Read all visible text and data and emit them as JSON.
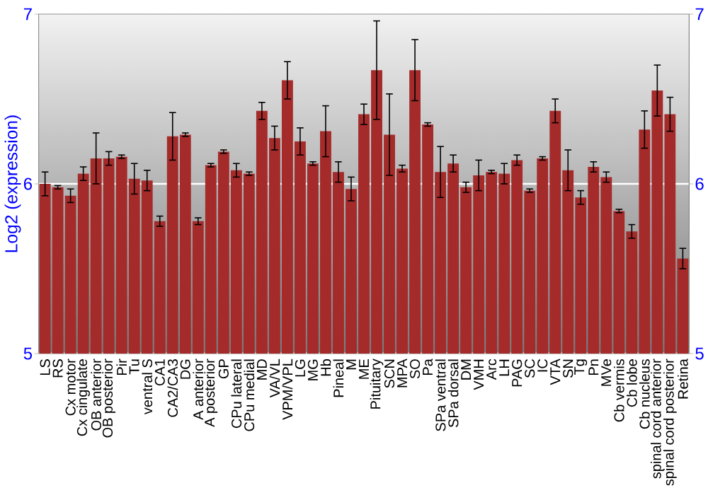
{
  "chart_data": {
    "type": "bar",
    "ylabel": "Log2 (expression)",
    "categories": [
      "LS",
      "RS",
      "Cx motor",
      "Cx cingulate",
      "OB anterior",
      "OB posterior",
      "Pir",
      "Tu",
      "ventral S",
      "CA1",
      "CA2/CA3",
      "DG",
      "A anterior",
      "A posterior",
      "GP",
      "CPu lateral",
      "CPu medial",
      "MD",
      "VA/VL",
      "VPM/VPL",
      "LG",
      "MG",
      "Hb",
      "Pineal",
      "M",
      "ME",
      "Pituitary",
      "SCN",
      "MPA",
      "SO",
      "Pa",
      "SPa ventral",
      "SPa dorsal",
      "DM",
      "VMH",
      "Arc",
      "LH",
      "PAG",
      "SC",
      "IC",
      "VTA",
      "SN",
      "Tg",
      "Pn",
      "MVe",
      "Cb vermis",
      "Cb lobe",
      "Cb nucleus",
      "spinal cord anterior",
      "spinal cord posterior",
      "Retina"
    ],
    "values": [
      6.0,
      5.98,
      5.93,
      6.06,
      6.15,
      6.15,
      6.16,
      6.03,
      6.02,
      5.78,
      6.28,
      6.29,
      5.78,
      6.11,
      6.19,
      6.08,
      6.06,
      6.43,
      6.27,
      6.61,
      6.25,
      6.12,
      6.31,
      6.07,
      5.97,
      6.41,
      6.67,
      6.29,
      6.09,
      6.67,
      6.35,
      6.07,
      6.12,
      5.98,
      6.05,
      6.07,
      6.06,
      6.14,
      5.96,
      6.15,
      6.43,
      6.08,
      5.92,
      6.1,
      6.04,
      5.84,
      5.72,
      6.32,
      6.55,
      6.41,
      5.56
    ],
    "errors": [
      0.07,
      0.01,
      0.04,
      0.04,
      0.15,
      0.04,
      0.01,
      0.09,
      0.06,
      0.03,
      0.14,
      0.01,
      0.02,
      0.01,
      0.01,
      0.04,
      0.01,
      0.05,
      0.07,
      0.11,
      0.08,
      0.01,
      0.15,
      0.06,
      0.07,
      0.06,
      0.29,
      0.24,
      0.02,
      0.18,
      0.01,
      0.15,
      0.05,
      0.03,
      0.09,
      0.01,
      0.06,
      0.03,
      0.01,
      0.01,
      0.07,
      0.12,
      0.04,
      0.03,
      0.03,
      0.01,
      0.04,
      0.11,
      0.15,
      0.1,
      0.06
    ],
    "color": "#a52a2a",
    "ylim": [
      5,
      7
    ],
    "yticks": [
      5,
      6,
      7
    ],
    "y2lim": [
      5,
      7
    ],
    "y2ticks": [
      5,
      6,
      7
    ],
    "grid": "y"
  }
}
